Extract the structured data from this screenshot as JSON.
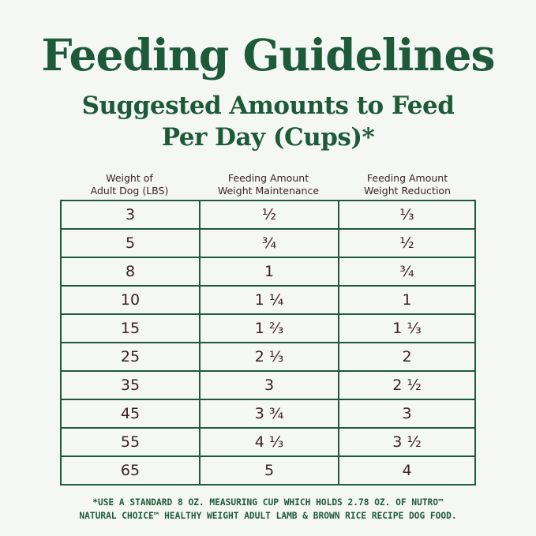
{
  "title": "Feeding Guidelines",
  "subtitle_line1": "Suggested Amounts to Feed",
  "subtitle_line2": "Per Day (Cups)*",
  "headers": [
    "Weight of\nAdult Dog (LBS)",
    "Feeding Amount\nWeight Maintenance",
    "Feeding Amount\nWeight Reduction"
  ],
  "rows": [
    [
      "3",
      "½",
      "⅓"
    ],
    [
      "5",
      "¾",
      "½"
    ],
    [
      "8",
      "1",
      "¾"
    ],
    [
      "10",
      "1 ¼",
      "1"
    ],
    [
      "15",
      "1 ⅔",
      "1 ⅓"
    ],
    [
      "25",
      "2 ⅓",
      "2"
    ],
    [
      "35",
      "3",
      "2 ½"
    ],
    [
      "45",
      "3 ¾",
      "3"
    ],
    [
      "55",
      "4 ⅓",
      "3 ½"
    ],
    [
      "65",
      "5",
      "4"
    ]
  ],
  "footnote_line1": "*USE A STANDARD 8 OZ. MEASURING CUP WHICH HOLDS 2.78 OZ. OF NUTRO™",
  "footnote_line2": "NATURAL CHOICE™ HEALTHY WEIGHT ADULT LAMB & BROWN RICE RECIPE DOG FOOD.",
  "colors": {
    "green": "#1d5a3a",
    "text": "#3a2226",
    "background": "#f5f7f2"
  }
}
